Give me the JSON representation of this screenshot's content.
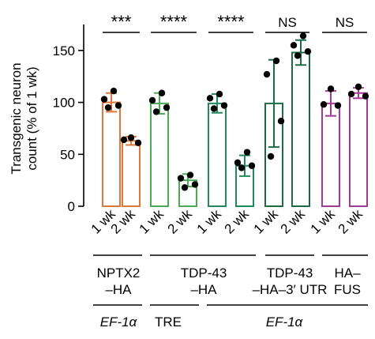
{
  "chart_data": {
    "type": "bar",
    "ylabel_line1": "Transgenic neuron",
    "ylabel_line2": "count (% of 1 wk)",
    "ylim": [
      0,
      175
    ],
    "yticks": [
      0,
      50,
      100,
      150
    ],
    "categories": [
      "1 wk",
      "2 wk",
      "1 wk",
      "2 wk",
      "1 wk",
      "2 wk",
      "1 wk",
      "2 wk",
      "1 wk",
      "2 wk"
    ],
    "bars": [
      {
        "label": "1 wk",
        "color": "#e0773a",
        "mean": 100,
        "sd": 9,
        "points": [
          111,
          103,
          97,
          95
        ]
      },
      {
        "label": "2 wk",
        "color": "#e0773a",
        "mean": 63,
        "sd": 4,
        "points": [
          66,
          64,
          61
        ]
      },
      {
        "label": "1 wk",
        "color": "#4caa57",
        "mean": 99,
        "sd": 10,
        "points": [
          109,
          102,
          95,
          91
        ]
      },
      {
        "label": "2 wk",
        "color": "#4caa57",
        "mean": 25,
        "sd": 6,
        "points": [
          30,
          27,
          21,
          18
        ]
      },
      {
        "label": "1 wk",
        "color": "#1f8a5b",
        "mean": 99,
        "sd": 9,
        "points": [
          108,
          104,
          97,
          94
        ]
      },
      {
        "label": "2 wk",
        "color": "#1f8a5b",
        "mean": 39,
        "sd": 10,
        "points": [
          52,
          42,
          39,
          37
        ]
      },
      {
        "label": "1 wk",
        "color": "#1d6b45",
        "mean": 99,
        "sd": 42,
        "points": [
          140,
          127,
          82,
          48
        ]
      },
      {
        "label": "2 wk",
        "color": "#1d6b45",
        "mean": 148,
        "sd": 12,
        "points": [
          164,
          155,
          149,
          145
        ]
      },
      {
        "label": "1 wk",
        "color": "#a33a96",
        "mean": 99,
        "sd": 12,
        "points": [
          113,
          98,
          97
        ]
      },
      {
        "label": "2 wk",
        "color": "#a33a96",
        "mean": 109,
        "sd": 5,
        "points": [
          115,
          108,
          106
        ]
      }
    ],
    "significance": [
      {
        "label": "***",
        "bars": [
          0,
          1
        ],
        "underline": true
      },
      {
        "label": "****",
        "bars": [
          2,
          3
        ],
        "underline": true
      },
      {
        "label": "****",
        "bars": [
          4,
          5
        ],
        "underline": true
      },
      {
        "label": "NS",
        "bars": [
          6,
          7
        ],
        "underline": true
      },
      {
        "label": "NS",
        "bars": [
          8,
          9
        ],
        "underline": true
      }
    ],
    "construct_groups": [
      {
        "line1": "NPTX2",
        "line2": "–HA",
        "bars": [
          0,
          1
        ]
      },
      {
        "line1": "TDP-43",
        "line2": "–HA",
        "bars": [
          2,
          5
        ]
      },
      {
        "line1": "TDP-43",
        "line2": "–HA–3′ UTR",
        "bars": [
          6,
          7
        ]
      },
      {
        "line1": "HA–",
        "line2": "FUS",
        "bars": [
          8,
          9
        ]
      }
    ],
    "promoter_groups": [
      {
        "label": "EF-1α",
        "italic": true,
        "bars": [
          0,
          1
        ]
      },
      {
        "label": "TRE",
        "italic": false,
        "bars": [
          2,
          3
        ]
      },
      {
        "label": "EF-1α",
        "italic": true,
        "bars": [
          4,
          9
        ]
      }
    ]
  }
}
